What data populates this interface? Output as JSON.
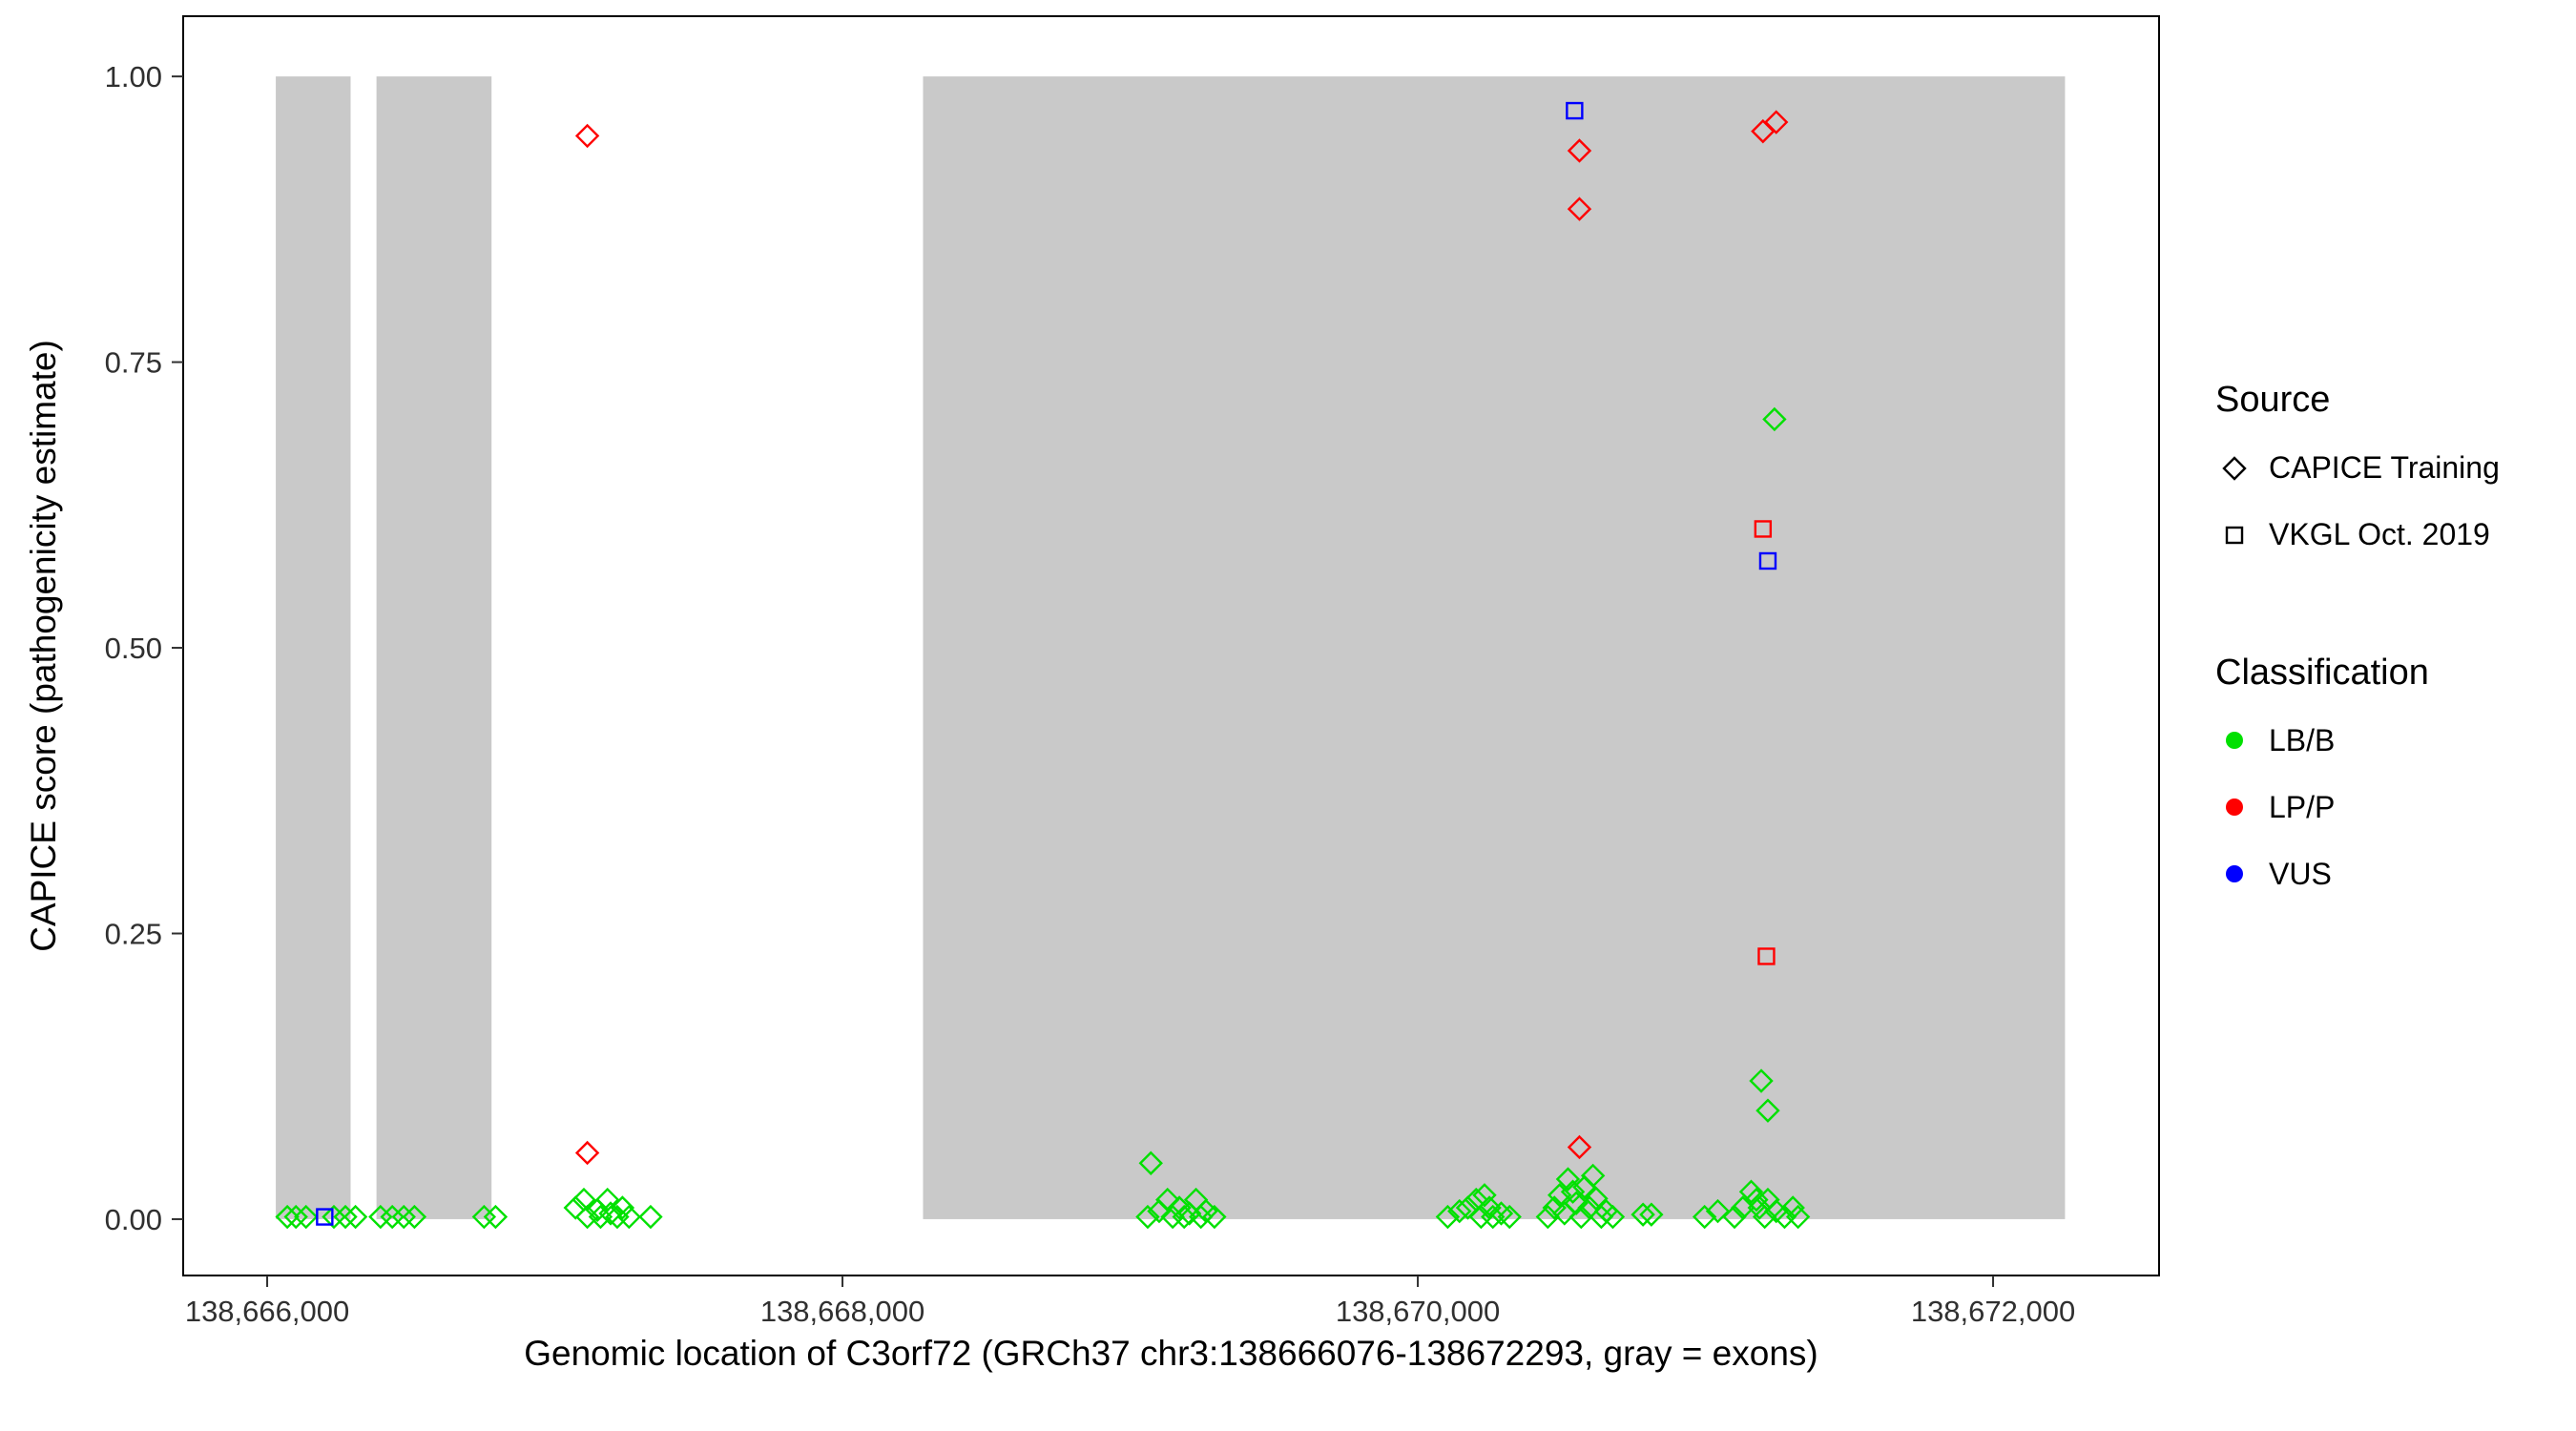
{
  "figure": {
    "background": "#FFFFFF",
    "panel_border_color": "#000000",
    "tick_text_color": "#303030"
  },
  "x_axis": {
    "title": "Genomic location of C3orf72 (GRCh37 chr3:138666076-138672293, gray = exons)",
    "tick_labels": [
      "138,666,000",
      "138,668,000",
      "138,670,000",
      "138,672,000"
    ],
    "tick_values": [
      138666000,
      138668000,
      138670000,
      138672000
    ]
  },
  "y_axis": {
    "title": "CAPICE score (pathogenicity estimate)",
    "tick_labels": [
      "0.00",
      "0.25",
      "0.50",
      "0.75",
      "1.00"
    ],
    "tick_values": [
      0,
      0.25,
      0.5,
      0.75,
      1
    ]
  },
  "legend": {
    "position": "right",
    "source": {
      "title": "Source",
      "items": [
        {
          "label": "CAPICE Training",
          "shape": "diamond"
        },
        {
          "label": "VKGL Oct. 2019",
          "shape": "square"
        }
      ]
    },
    "classification": {
      "title": "Classification",
      "items": [
        {
          "label": "LB/B",
          "color": "#00E000"
        },
        {
          "label": "LP/P",
          "color": "#FF0000"
        },
        {
          "label": "VUS",
          "color": "#0000FF"
        }
      ]
    }
  },
  "chart_data": {
    "type": "scatter",
    "title": "",
    "xlabel": "Genomic location of C3orf72 (GRCh37 chr3:138666076-138672293, gray = exons)",
    "ylabel": "CAPICE score (pathogenicity estimate)",
    "xlim": [
      138665708,
      138672577
    ],
    "ylim": [
      -0.0493,
      1.0527
    ],
    "grid": false,
    "exon_color": "#C9C9C9",
    "exons": [
      [
        138666030,
        138666290
      ],
      [
        138666380,
        138666780
      ],
      [
        138668280,
        138672250
      ]
    ],
    "series": [
      {
        "name": "CAPICE Training - LB/B",
        "source": "CAPICE Training",
        "classification": "LB/B",
        "shape": "diamond",
        "color": "#00E000",
        "points": [
          [
            138666070,
            0.002
          ],
          [
            138666100,
            0.002
          ],
          [
            138666135,
            0.002
          ],
          [
            138666232,
            0.002
          ],
          [
            138666272,
            0.002
          ],
          [
            138666307,
            0.002
          ],
          [
            138666394,
            0.002
          ],
          [
            138666435,
            0.002
          ],
          [
            138666475,
            0.002
          ],
          [
            138666512,
            0.002
          ],
          [
            138666754,
            0.002
          ],
          [
            138666794,
            0.002
          ],
          [
            138667072,
            0.01
          ],
          [
            138667101,
            0.017
          ],
          [
            138667113,
            0.002
          ],
          [
            138667148,
            0.008
          ],
          [
            138667159,
            0.002
          ],
          [
            138667183,
            0.017
          ],
          [
            138667194,
            0.005
          ],
          [
            138667217,
            0.002
          ],
          [
            138667235,
            0.01
          ],
          [
            138667258,
            0.002
          ],
          [
            138667333,
            0.002
          ],
          [
            138669061,
            0.002
          ],
          [
            138669072,
            0.049
          ],
          [
            138669101,
            0.007
          ],
          [
            138669130,
            0.017
          ],
          [
            138669148,
            0.002
          ],
          [
            138669171,
            0.01
          ],
          [
            138669188,
            0.002
          ],
          [
            138669206,
            0.005
          ],
          [
            138669229,
            0.017
          ],
          [
            138669246,
            0.002
          ],
          [
            138669264,
            0.007
          ],
          [
            138669293,
            0.002
          ],
          [
            138670104,
            0.002
          ],
          [
            138670145,
            0.007
          ],
          [
            138670174,
            0.01
          ],
          [
            138670203,
            0.017
          ],
          [
            138670220,
            0.002
          ],
          [
            138670232,
            0.021
          ],
          [
            138670249,
            0.01
          ],
          [
            138670261,
            0.002
          ],
          [
            138670290,
            0.005
          ],
          [
            138670319,
            0.002
          ],
          [
            138670452,
            0.002
          ],
          [
            138670475,
            0.01
          ],
          [
            138670493,
            0.021
          ],
          [
            138670510,
            0.005
          ],
          [
            138670522,
            0.035
          ],
          [
            138670539,
            0.024
          ],
          [
            138670551,
            0.014
          ],
          [
            138670568,
            0.002
          ],
          [
            138670580,
            0.028
          ],
          [
            138670597,
            0.01
          ],
          [
            138670609,
            0.038
          ],
          [
            138670620,
            0.018
          ],
          [
            138670638,
            0.002
          ],
          [
            138670655,
            0.007
          ],
          [
            138670678,
            0.002
          ],
          [
            138670783,
            0.004
          ],
          [
            138670812,
            0.004
          ],
          [
            138670997,
            0.002
          ],
          [
            138671043,
            0.007
          ],
          [
            138671101,
            0.002
          ],
          [
            138671130,
            0.01
          ],
          [
            138671159,
            0.024
          ],
          [
            138671177,
            0.017
          ],
          [
            138671188,
            0.01
          ],
          [
            138671206,
            0.002
          ],
          [
            138671217,
            0.017
          ],
          [
            138671246,
            0.007
          ],
          [
            138671275,
            0.002
          ],
          [
            138671304,
            0.01
          ],
          [
            138671322,
            0.002
          ],
          [
            138671194,
            0.121
          ],
          [
            138671217,
            0.095
          ],
          [
            138671240,
            0.7
          ]
        ]
      },
      {
        "name": "CAPICE Training - LP/P",
        "source": "CAPICE Training",
        "classification": "LP/P",
        "shape": "diamond",
        "color": "#FF0000",
        "points": [
          [
            138667113,
            0.948
          ],
          [
            138667113,
            0.058
          ],
          [
            138670562,
            0.935
          ],
          [
            138670562,
            0.884
          ],
          [
            138670562,
            0.063
          ],
          [
            138671200,
            0.952
          ],
          [
            138671246,
            0.96
          ]
        ]
      },
      {
        "name": "VKGL Oct. 2019 - LP/P",
        "source": "VKGL Oct. 2019",
        "classification": "LP/P",
        "shape": "square",
        "color": "#FF0000",
        "points": [
          [
            138671200,
            0.604
          ],
          [
            138671212,
            0.23
          ]
        ]
      },
      {
        "name": "VKGL Oct. 2019 - VUS",
        "source": "VKGL Oct. 2019",
        "classification": "VUS",
        "shape": "square",
        "color": "#0000FF",
        "points": [
          [
            138670545,
            0.97
          ],
          [
            138671217,
            0.576
          ],
          [
            138666200,
            0.002
          ]
        ]
      }
    ]
  }
}
